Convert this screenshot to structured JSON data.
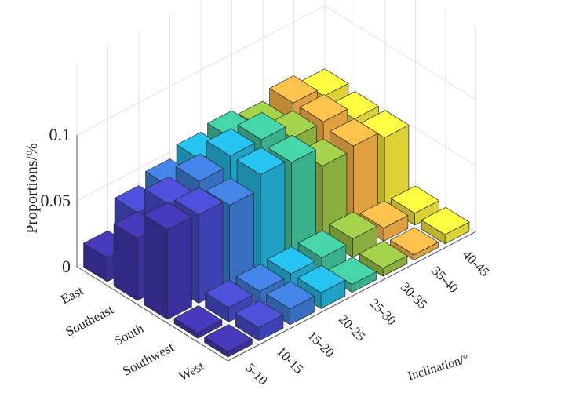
{
  "chart_data": {
    "type": "bar3d",
    "zlabel": "Proportions/%",
    "xlabel": "Inclination/°",
    "zticks": [
      "0",
      "0.05",
      "0.1"
    ],
    "zlim": [
      0,
      0.1
    ],
    "inclination_bins": [
      "5-10",
      "10-15",
      "15-20",
      "20-25",
      "25-30",
      "30-35",
      "35-40",
      "40-45"
    ],
    "aspects": [
      "East",
      "Southeast",
      "South",
      "Southwest",
      "West"
    ],
    "series": [
      {
        "inclination": "5-10",
        "color": "#3f34a8",
        "values": [
          0.018,
          0.047,
          0.068,
          0.004,
          0.004
        ]
      },
      {
        "inclination": "10-15",
        "color": "#4548c4",
        "values": [
          0.04,
          0.061,
          0.067,
          0.011,
          0.01
        ]
      },
      {
        "inclination": "15-20",
        "color": "#3d78d1",
        "values": [
          0.048,
          0.066,
          0.062,
          0.011,
          0.012
        ]
      },
      {
        "inclination": "20-25",
        "color": "#22afd6",
        "values": [
          0.056,
          0.073,
          0.073,
          0.012,
          0.012
        ]
      },
      {
        "inclination": "25-30",
        "color": "#3fbe98",
        "values": [
          0.06,
          0.073,
          0.07,
          0.012,
          0.006
        ]
      },
      {
        "inclination": "30-35",
        "color": "#93bd44",
        "values": [
          0.055,
          0.062,
          0.055,
          0.014,
          0.006
        ]
      },
      {
        "inclination": "35-40",
        "color": "#f5ae45",
        "values": [
          0.062,
          0.062,
          0.058,
          0.01,
          0.004
        ]
      },
      {
        "inclination": "40-45",
        "color": "#f0e33b",
        "values": [
          0.055,
          0.052,
          0.052,
          0.009,
          0.007
        ]
      }
    ]
  }
}
